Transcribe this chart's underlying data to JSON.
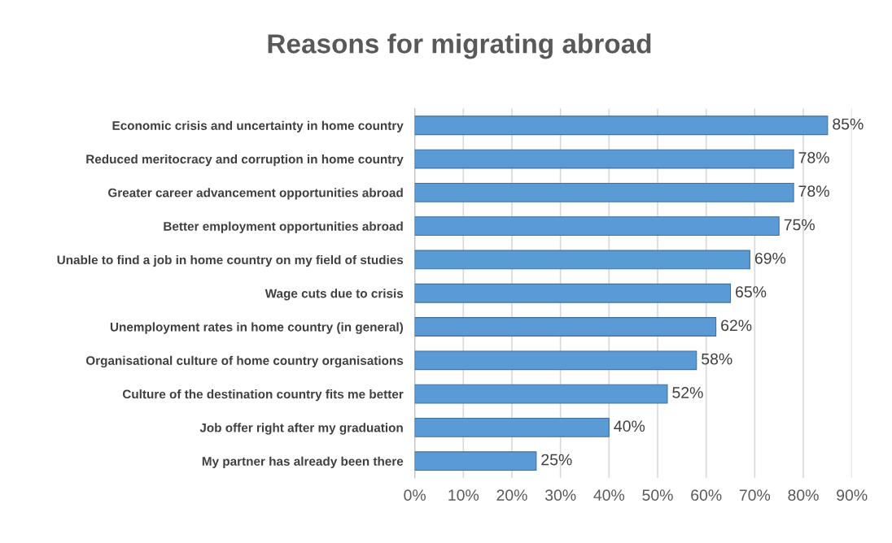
{
  "chart_data": {
    "type": "bar",
    "orientation": "horizontal",
    "title": "Reasons for migrating abroad",
    "categories": [
      "Economic crisis and uncertainty in home country",
      "Reduced meritocracy and corruption in home country",
      "Greater career advancement opportunities abroad",
      "Better employment opportunities abroad",
      "Unable to find a job in home country on my field of studies",
      "Wage cuts due to crisis",
      "Unemployment rates in home country (in general)",
      "Organisational culture of home country organisations",
      "Culture of the destination country fits me better",
      "Job offer right after my graduation",
      "My partner has already been there"
    ],
    "values": [
      85,
      78,
      78,
      75,
      69,
      65,
      62,
      58,
      52,
      40,
      25
    ],
    "value_labels": [
      "85%",
      "78%",
      "78%",
      "75%",
      "69%",
      "65%",
      "62%",
      "58%",
      "52%",
      "40%",
      "25%"
    ],
    "color": "#5b9bd5",
    "xlim": [
      0,
      90
    ],
    "xticks": [
      {
        "value": 0,
        "label": "0%"
      },
      {
        "value": 10,
        "label": "10%"
      },
      {
        "value": 20,
        "label": "20%"
      },
      {
        "value": 30,
        "label": "30%"
      },
      {
        "value": 40,
        "label": "40%"
      },
      {
        "value": 50,
        "label": "50%"
      },
      {
        "value": 60,
        "label": "60%"
      },
      {
        "value": 70,
        "label": "70%"
      },
      {
        "value": 80,
        "label": "80%"
      },
      {
        "value": 90,
        "label": "90%"
      }
    ],
    "grid": "x"
  }
}
